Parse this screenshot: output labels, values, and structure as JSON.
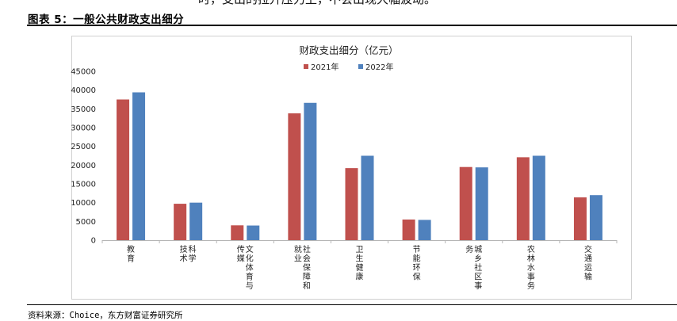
{
  "page": {
    "top_text": "时，支出的拉升压力上，不会出现大幅波动。",
    "figure_title": "图表 5：一般公共财政支出细分",
    "source": "资料来源：Choice，东方财富证券研究所"
  },
  "chart_data": {
    "type": "bar",
    "title": "财政支出细分（亿元）",
    "categories": [
      "教育",
      "科学技术",
      "文化体育与传媒",
      "社会保障和就业",
      "卫生健康",
      "节能环保",
      "城乡社区事务",
      "农林水事务",
      "交通运输"
    ],
    "category_lines": [
      [
        "教育"
      ],
      [
        "科学",
        "技术"
      ],
      [
        "文化体育与",
        "传媒"
      ],
      [
        "社会保障和",
        "就业"
      ],
      [
        "卫生健康"
      ],
      [
        "节能环保"
      ],
      [
        "城乡社区事",
        "务"
      ],
      [
        "农林水事务"
      ],
      [
        "交通运输"
      ]
    ],
    "series": [
      {
        "name": "2021年",
        "color": "#C0504D",
        "values": [
          37500,
          9700,
          3950,
          33800,
          19200,
          5500,
          19500,
          22100,
          11400
        ]
      },
      {
        "name": "2022年",
        "color": "#4F81BD",
        "values": [
          39400,
          10000,
          3900,
          36600,
          22500,
          5400,
          19400,
          22500,
          12000
        ]
      }
    ],
    "ylim": [
      0,
      45000
    ],
    "yticks": [
      "0",
      "5000",
      "10000",
      "15000",
      "20000",
      "25000",
      "30000",
      "35000",
      "40000",
      "45000"
    ],
    "grid": false,
    "legend_position": "top-center"
  }
}
